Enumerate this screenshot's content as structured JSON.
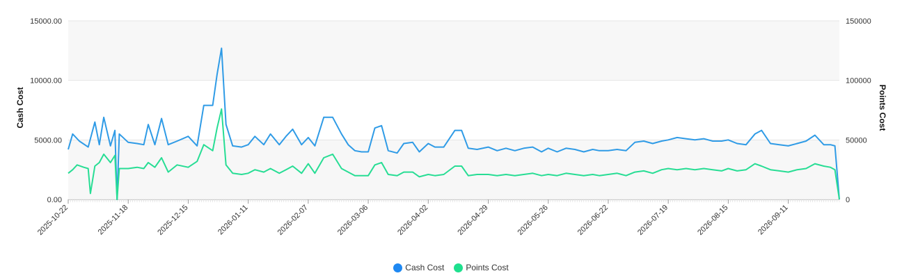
{
  "chart_data": {
    "type": "line",
    "y_left_label": "Cash Cost",
    "y_right_label": "Points Cost",
    "y_left_ticks": [
      "0.00",
      "5000.00",
      "10000.00",
      "15000.00"
    ],
    "y_right_ticks": [
      "0",
      "50000",
      "100000",
      "150000"
    ],
    "y_left_range": [
      0,
      15000
    ],
    "y_right_range": [
      0,
      150000
    ],
    "x_range": [
      "2025-10-22",
      "2026-10-04"
    ],
    "x_ticks": [
      "2025-10-22",
      "2025-11-18",
      "2025-12-15",
      "2026-01-11",
      "2026-02-07",
      "2026-03-06",
      "2026-04-02",
      "2026-04-29",
      "2026-05-26",
      "2026-06-22",
      "2026-07-19",
      "2026-08-15",
      "2026-09-11"
    ],
    "grid": true,
    "legend_position": "bottom-center",
    "series": [
      {
        "name": "Cash Cost",
        "axis": "left",
        "color": "#2f9be6",
        "points": [
          [
            "2025-10-22",
            4200
          ],
          [
            "2025-10-24",
            5500
          ],
          [
            "2025-10-27",
            4900
          ],
          [
            "2025-10-31",
            4400
          ],
          [
            "2025-11-03",
            6500
          ],
          [
            "2025-11-05",
            4600
          ],
          [
            "2025-11-07",
            6900
          ],
          [
            "2025-11-10",
            4500
          ],
          [
            "2025-11-12",
            5800
          ],
          [
            "2025-11-13",
            0
          ],
          [
            "2025-11-14",
            5500
          ],
          [
            "2025-11-18",
            4800
          ],
          [
            "2025-11-22",
            4700
          ],
          [
            "2025-11-25",
            4600
          ],
          [
            "2025-11-27",
            6300
          ],
          [
            "2025-11-30",
            4600
          ],
          [
            "2025-12-03",
            6800
          ],
          [
            "2025-12-06",
            4600
          ],
          [
            "2025-12-10",
            4900
          ],
          [
            "2025-12-15",
            5300
          ],
          [
            "2025-12-19",
            4500
          ],
          [
            "2025-12-22",
            7900
          ],
          [
            "2025-12-26",
            7900
          ],
          [
            "2025-12-28",
            10500
          ],
          [
            "2025-12-30",
            12700
          ],
          [
            "2026-01-01",
            6300
          ],
          [
            "2026-01-04",
            4500
          ],
          [
            "2026-01-08",
            4400
          ],
          [
            "2026-01-11",
            4600
          ],
          [
            "2026-01-14",
            5300
          ],
          [
            "2026-01-18",
            4600
          ],
          [
            "2026-01-21",
            5500
          ],
          [
            "2026-01-25",
            4600
          ],
          [
            "2026-01-28",
            5300
          ],
          [
            "2026-01-31",
            5900
          ],
          [
            "2026-02-04",
            4600
          ],
          [
            "2026-02-07",
            5200
          ],
          [
            "2026-02-10",
            4500
          ],
          [
            "2026-02-14",
            6900
          ],
          [
            "2026-02-18",
            6900
          ],
          [
            "2026-02-22",
            5500
          ],
          [
            "2026-02-25",
            4600
          ],
          [
            "2026-02-28",
            4100
          ],
          [
            "2026-03-03",
            4000
          ],
          [
            "2026-03-06",
            4000
          ],
          [
            "2026-03-09",
            6000
          ],
          [
            "2026-03-12",
            6200
          ],
          [
            "2026-03-15",
            4100
          ],
          [
            "2026-03-19",
            3900
          ],
          [
            "2026-03-22",
            4700
          ],
          [
            "2026-03-26",
            4800
          ],
          [
            "2026-03-29",
            4000
          ],
          [
            "2026-04-02",
            4700
          ],
          [
            "2026-04-05",
            4400
          ],
          [
            "2026-04-09",
            4400
          ],
          [
            "2026-04-14",
            5800
          ],
          [
            "2026-04-17",
            5800
          ],
          [
            "2026-04-20",
            4300
          ],
          [
            "2026-04-24",
            4200
          ],
          [
            "2026-04-29",
            4400
          ],
          [
            "2026-05-03",
            4100
          ],
          [
            "2026-05-07",
            4300
          ],
          [
            "2026-05-11",
            4100
          ],
          [
            "2026-05-15",
            4300
          ],
          [
            "2026-05-19",
            4400
          ],
          [
            "2026-05-23",
            4000
          ],
          [
            "2026-05-26",
            4300
          ],
          [
            "2026-05-30",
            4000
          ],
          [
            "2026-06-03",
            4300
          ],
          [
            "2026-06-07",
            4200
          ],
          [
            "2026-06-11",
            4000
          ],
          [
            "2026-06-15",
            4200
          ],
          [
            "2026-06-18",
            4100
          ],
          [
            "2026-06-22",
            4100
          ],
          [
            "2026-06-26",
            4200
          ],
          [
            "2026-06-30",
            4100
          ],
          [
            "2026-07-04",
            4800
          ],
          [
            "2026-07-08",
            4900
          ],
          [
            "2026-07-12",
            4700
          ],
          [
            "2026-07-16",
            4900
          ],
          [
            "2026-07-19",
            5000
          ],
          [
            "2026-07-23",
            5200
          ],
          [
            "2026-07-27",
            5100
          ],
          [
            "2026-07-31",
            5000
          ],
          [
            "2026-08-04",
            5100
          ],
          [
            "2026-08-08",
            4900
          ],
          [
            "2026-08-12",
            4900
          ],
          [
            "2026-08-15",
            5000
          ],
          [
            "2026-08-19",
            4700
          ],
          [
            "2026-08-23",
            4600
          ],
          [
            "2026-08-27",
            5500
          ],
          [
            "2026-08-30",
            5800
          ],
          [
            "2026-09-03",
            4700
          ],
          [
            "2026-09-07",
            4600
          ],
          [
            "2026-09-11",
            4500
          ],
          [
            "2026-09-15",
            4700
          ],
          [
            "2026-09-19",
            4900
          ],
          [
            "2026-09-23",
            5400
          ],
          [
            "2026-09-27",
            4600
          ],
          [
            "2026-09-30",
            4600
          ],
          [
            "2026-10-02",
            4500
          ],
          [
            "2026-10-04",
            0
          ]
        ]
      },
      {
        "name": "Points Cost",
        "axis": "right",
        "color": "#27dd94",
        "points": [
          [
            "2025-10-22",
            22000
          ],
          [
            "2025-10-24",
            25000
          ],
          [
            "2025-10-26",
            29000
          ],
          [
            "2025-10-29",
            27000
          ],
          [
            "2025-10-31",
            26000
          ],
          [
            "2025-11-01",
            5000
          ],
          [
            "2025-11-03",
            28000
          ],
          [
            "2025-11-05",
            31000
          ],
          [
            "2025-11-07",
            38000
          ],
          [
            "2025-11-10",
            31000
          ],
          [
            "2025-11-12",
            37000
          ],
          [
            "2025-11-13",
            0
          ],
          [
            "2025-11-14",
            26000
          ],
          [
            "2025-11-18",
            26000
          ],
          [
            "2025-11-22",
            27000
          ],
          [
            "2025-11-25",
            26000
          ],
          [
            "2025-11-27",
            31000
          ],
          [
            "2025-11-30",
            27000
          ],
          [
            "2025-12-03",
            35000
          ],
          [
            "2025-12-06",
            23000
          ],
          [
            "2025-12-10",
            29000
          ],
          [
            "2025-12-15",
            27000
          ],
          [
            "2025-12-19",
            32000
          ],
          [
            "2025-12-22",
            46000
          ],
          [
            "2025-12-26",
            41000
          ],
          [
            "2025-12-28",
            60000
          ],
          [
            "2025-12-30",
            76000
          ],
          [
            "2026-01-01",
            29000
          ],
          [
            "2026-01-04",
            22000
          ],
          [
            "2026-01-08",
            21000
          ],
          [
            "2026-01-11",
            22000
          ],
          [
            "2026-01-14",
            25000
          ],
          [
            "2026-01-18",
            23000
          ],
          [
            "2026-01-21",
            26000
          ],
          [
            "2026-01-25",
            22000
          ],
          [
            "2026-01-28",
            25000
          ],
          [
            "2026-01-31",
            28000
          ],
          [
            "2026-02-04",
            22000
          ],
          [
            "2026-02-07",
            30000
          ],
          [
            "2026-02-10",
            22000
          ],
          [
            "2026-02-14",
            35000
          ],
          [
            "2026-02-18",
            38000
          ],
          [
            "2026-02-22",
            26000
          ],
          [
            "2026-02-25",
            23000
          ],
          [
            "2026-02-28",
            20000
          ],
          [
            "2026-03-03",
            20000
          ],
          [
            "2026-03-06",
            20000
          ],
          [
            "2026-03-09",
            29000
          ],
          [
            "2026-03-12",
            31000
          ],
          [
            "2026-03-15",
            21000
          ],
          [
            "2026-03-19",
            20000
          ],
          [
            "2026-03-22",
            23000
          ],
          [
            "2026-03-26",
            23000
          ],
          [
            "2026-03-29",
            19000
          ],
          [
            "2026-04-02",
            21000
          ],
          [
            "2026-04-05",
            20000
          ],
          [
            "2026-04-09",
            21000
          ],
          [
            "2026-04-14",
            28000
          ],
          [
            "2026-04-17",
            28000
          ],
          [
            "2026-04-20",
            20000
          ],
          [
            "2026-04-24",
            21000
          ],
          [
            "2026-04-29",
            21000
          ],
          [
            "2026-05-03",
            20000
          ],
          [
            "2026-05-07",
            21000
          ],
          [
            "2026-05-11",
            20000
          ],
          [
            "2026-05-15",
            21000
          ],
          [
            "2026-05-19",
            22000
          ],
          [
            "2026-05-23",
            20000
          ],
          [
            "2026-05-26",
            21000
          ],
          [
            "2026-05-30",
            20000
          ],
          [
            "2026-06-03",
            22000
          ],
          [
            "2026-06-07",
            21000
          ],
          [
            "2026-06-11",
            20000
          ],
          [
            "2026-06-15",
            21000
          ],
          [
            "2026-06-18",
            20000
          ],
          [
            "2026-06-22",
            21000
          ],
          [
            "2026-06-26",
            22000
          ],
          [
            "2026-06-30",
            20000
          ],
          [
            "2026-07-04",
            23000
          ],
          [
            "2026-07-08",
            24000
          ],
          [
            "2026-07-12",
            22000
          ],
          [
            "2026-07-16",
            25000
          ],
          [
            "2026-07-19",
            26000
          ],
          [
            "2026-07-23",
            25000
          ],
          [
            "2026-07-27",
            26000
          ],
          [
            "2026-07-31",
            25000
          ],
          [
            "2026-08-04",
            26000
          ],
          [
            "2026-08-08",
            25000
          ],
          [
            "2026-08-12",
            24000
          ],
          [
            "2026-08-15",
            26000
          ],
          [
            "2026-08-19",
            24000
          ],
          [
            "2026-08-23",
            25000
          ],
          [
            "2026-08-27",
            30000
          ],
          [
            "2026-08-30",
            28000
          ],
          [
            "2026-09-03",
            25000
          ],
          [
            "2026-09-07",
            24000
          ],
          [
            "2026-09-11",
            23000
          ],
          [
            "2026-09-15",
            25000
          ],
          [
            "2026-09-19",
            26000
          ],
          [
            "2026-09-23",
            30000
          ],
          [
            "2026-09-27",
            28000
          ],
          [
            "2026-09-30",
            27000
          ],
          [
            "2026-10-02",
            25000
          ],
          [
            "2026-10-04",
            0
          ]
        ]
      }
    ]
  }
}
